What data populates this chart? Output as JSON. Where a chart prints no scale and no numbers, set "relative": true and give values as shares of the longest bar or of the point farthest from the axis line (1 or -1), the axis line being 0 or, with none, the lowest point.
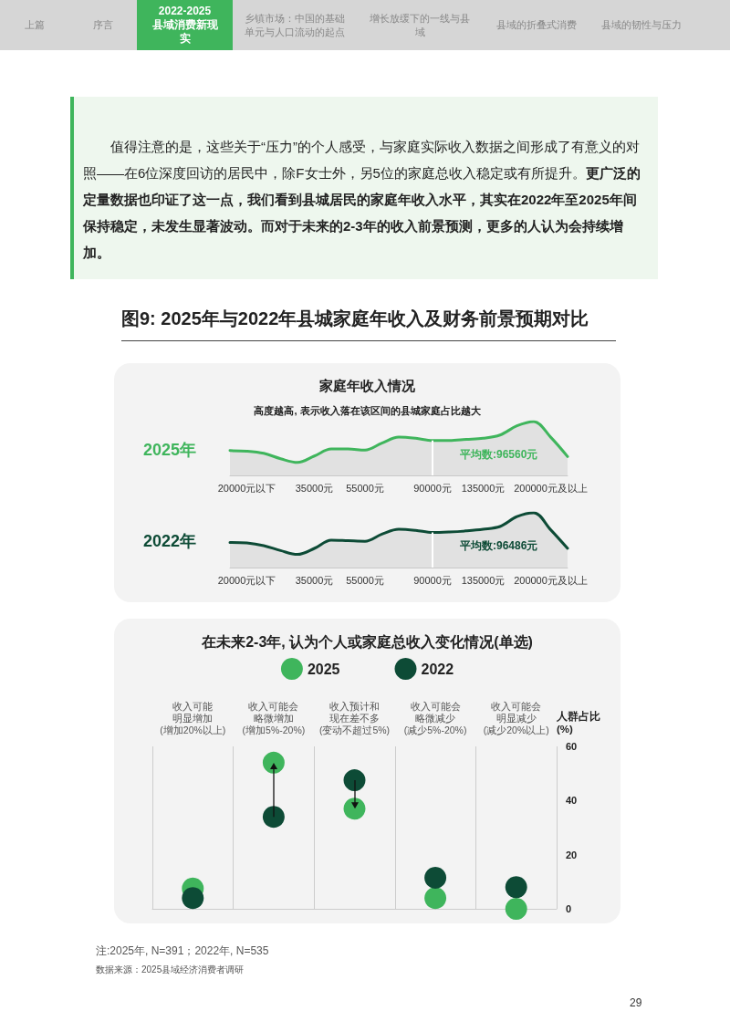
{
  "chart_data": [
    {
      "type": "other",
      "annotations": [
        "上篇",
        "序言",
        "2022-2025\n县域消费新现实",
        "乡镇市场：中国的基础单元与人口流动的起点",
        "增长放缓下的一线与县域",
        "县域的折叠式消费",
        "县域的韧性与压力",
        "值得注意的是，这些关于“压力”的个人感受，与家庭实际收入数据之间形成了有意义的对照——在6位深度回访的居民中，除F女士外，另5位的家庭总收入稳定或有所提升。",
        "更广泛的定量数据也印证了这一点，我们看到县城居民的家庭年收入水平，其实在2022年至2025年间保持稳定，未发生显著波动。而对于未来的2-3年的收入前景预测，更多的人认为会持续增加。",
        "29"
      ]
    },
    {
      "type": "area",
      "title": "图9: 2025年与2022年县城家庭年收入及财务前景预期对比",
      "subtitle": "家庭年收入情况",
      "annotations": [
        "高度越高, 表示收入落在该区间的县城家庭占比越大"
      ],
      "ylabel": "2025年",
      "relative": true,
      "categories": [
        null,
        "20000元以下",
        null,
        null,
        null,
        "35000元",
        null,
        null,
        "55000元",
        null,
        null,
        null,
        "90000元",
        null,
        null,
        "135000元",
        null,
        null,
        null,
        "200000元及以上",
        null
      ],
      "series": [
        {
          "color": "#3fb55c",
          "values": [
            0.46,
            0.45,
            0.41,
            0.31,
            0.24,
            0.36,
            0.49,
            0.49,
            0.47,
            0.6,
            0.71,
            0.69,
            0.65,
            0.65,
            0.67,
            0.69,
            0.75,
            0.92,
            1,
            0.71,
            0.35
          ]
        }
      ],
      "ref_lines": [
        {
          "axis": "x",
          "value": "90000元",
          "label": "平均数:96560元",
          "color": "#ffffff"
        }
      ]
    },
    {
      "type": "area",
      "ylabel": "2022年",
      "relative": true,
      "categories": [
        null,
        "20000元以下",
        null,
        null,
        null,
        "35000元",
        null,
        null,
        "55000元",
        null,
        null,
        null,
        "90000元",
        null,
        null,
        "135000元",
        null,
        null,
        null,
        "200000元及以上",
        null
      ],
      "series": [
        {
          "color": "#0d4b36",
          "values": [
            0.46,
            0.45,
            0.4,
            0.31,
            0.24,
            0.35,
            0.5,
            0.49,
            0.48,
            0.61,
            0.7,
            0.68,
            0.64,
            0.65,
            0.67,
            0.7,
            0.75,
            0.93,
            1,
            0.69,
            0.35
          ]
        }
      ],
      "ref_lines": [
        {
          "axis": "x",
          "value": "90000元",
          "label": "平均数:96486元",
          "color": "#ffffff"
        }
      ]
    },
    {
      "type": "scatter",
      "title": "在未来2-3年, 认为个人或家庭总收入变化情况(单选)",
      "ylabel": "人群占比\n(%)",
      "legend": "top",
      "grid": "x",
      "marker": "circle",
      "categories": [
        "收入可能明显增加(增加20%以上)",
        "收入可能会略微增加(增加5%-20%)",
        "收入预计和现在差不多(变动不超过5%)",
        "收入可能会略微减少(减少5%-20%)",
        "收入可能会明显减少(减少20%以上)"
      ],
      "ylim": [
        0,
        60
      ],
      "yticks": [
        0,
        20,
        40,
        60
      ],
      "series": [
        {
          "name": "2025",
          "color": "#3fb55c",
          "values": [
            7.5,
            54,
            37,
            4,
            0
          ]
        },
        {
          "name": "2022",
          "color": "#0d4b36",
          "values": [
            4,
            34,
            47.5,
            11.5,
            8
          ]
        }
      ],
      "annotations": [
        "注:2025年, N=391；2022年, N=535",
        "数据来源：2025县域经济消费者调研"
      ]
    }
  ]
}
